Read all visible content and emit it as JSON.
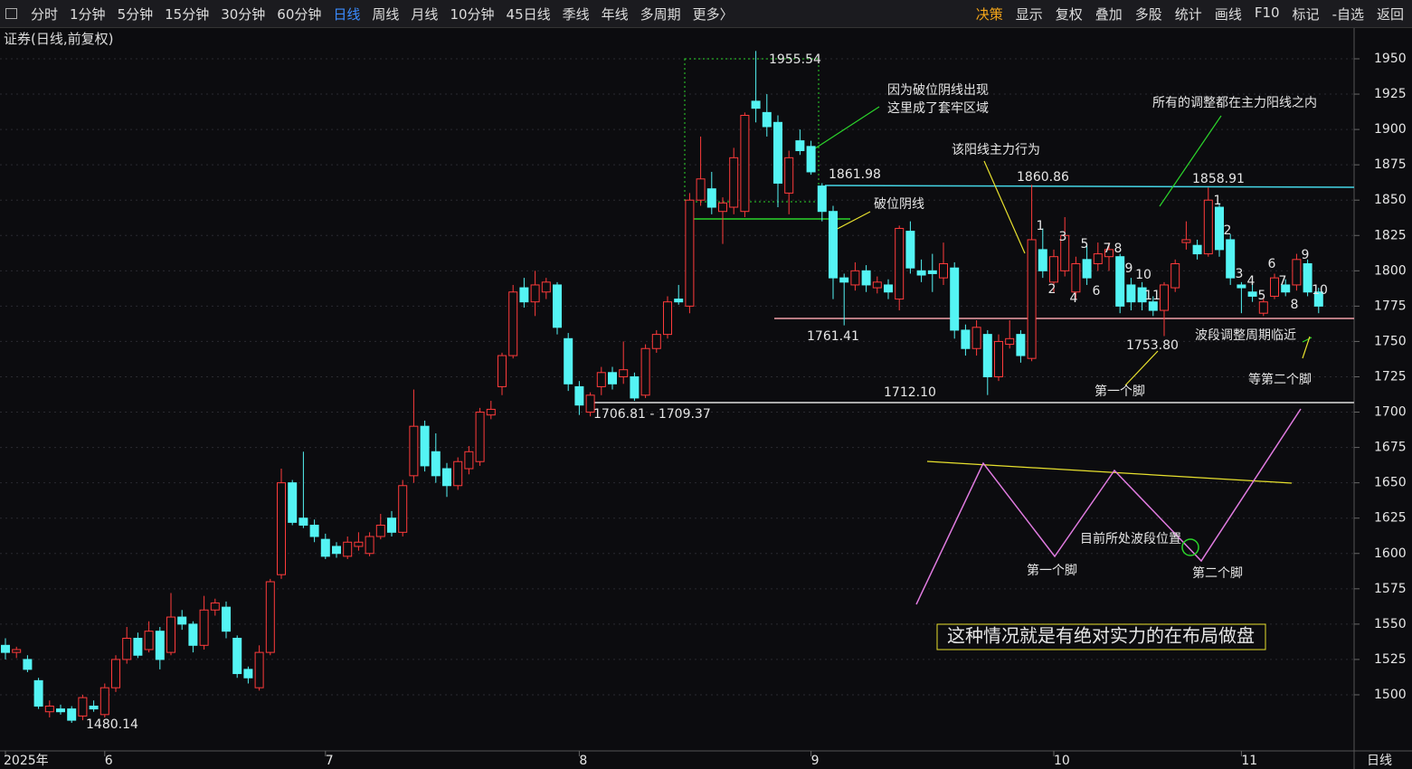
{
  "toolbar": {
    "left": [
      "分时",
      "1分钟",
      "5分钟",
      "15分钟",
      "30分钟",
      "60分钟",
      "日线",
      "周线",
      "月线",
      "10分钟",
      "45日线",
      "季线",
      "年线",
      "多周期",
      "更多〉"
    ],
    "right": [
      "决策",
      "显示",
      "复权",
      "叠加",
      "多股",
      "统计",
      "画线",
      "F10",
      "标记",
      "-自选",
      "返回"
    ]
  },
  "chart_data": {
    "type": "candlestick",
    "title": "证券(日线,前复权)",
    "period_label": "日线",
    "categories": [
      "2025年",
      null,
      null,
      null,
      null,
      null,
      null,
      null,
      null,
      "6",
      null,
      null,
      null,
      null,
      null,
      null,
      null,
      null,
      null,
      null,
      null,
      null,
      null,
      null,
      null,
      null,
      null,
      null,
      null,
      "7",
      null,
      null,
      null,
      null,
      null,
      null,
      null,
      null,
      null,
      null,
      null,
      null,
      null,
      null,
      null,
      null,
      null,
      null,
      null,
      null,
      null,
      null,
      "8",
      null,
      null,
      null,
      null,
      null,
      null,
      null,
      null,
      null,
      null,
      null,
      null,
      null,
      null,
      null,
      null,
      null,
      null,
      null,
      null,
      "9",
      null,
      null,
      null,
      null,
      null,
      null,
      null,
      null,
      null,
      null,
      null,
      null,
      null,
      null,
      null,
      null,
      null,
      null,
      null,
      null,
      null,
      "10",
      null,
      null,
      null,
      null,
      null,
      null,
      null,
      null,
      null,
      null,
      null,
      null,
      null,
      null,
      null,
      null,
      "11",
      null,
      null,
      null,
      null,
      null,
      null,
      null
    ],
    "open": [
      1535,
      1530,
      1525,
      1510,
      1488,
      1490,
      1490,
      1485,
      1492,
      1486,
      1505,
      1525,
      1540,
      1532,
      1545,
      1530,
      1555,
      1550,
      1535,
      1560,
      1562,
      1540,
      1518,
      1505,
      1530,
      1585,
      1650,
      1625,
      1620,
      1610,
      1605,
      1598,
      1605,
      1600,
      1612,
      1625,
      1615,
      1655,
      1690,
      1672,
      1660,
      1648,
      1660,
      1665,
      1698,
      1718,
      1740,
      1788,
      1778,
      1785,
      1790,
      1752,
      1718,
      1700,
      1718,
      1728,
      1725,
      1725,
      1712,
      1745,
      1755,
      1780,
      1775,
      1850,
      1858,
      1842,
      1845,
      1842,
      1920,
      1912,
      1905,
      1855,
      1892,
      1888,
      1860,
      1842,
      1795,
      1790,
      1800,
      1788,
      1790,
      1780,
      1828,
      1800,
      1800,
      1795,
      1802,
      1758,
      1745,
      1755,
      1725,
      1748,
      1755,
      1738,
      1815,
      1792,
      1800,
      1785,
      1808,
      1805,
      1810,
      1810,
      1790,
      1788,
      1778,
      1772,
      1788,
      1820,
      1818,
      1812,
      1845,
      1822,
      1790,
      1785,
      1770,
      1782,
      1790,
      1790,
      1805,
      1785
    ],
    "high": [
      1540,
      1534,
      1528,
      1512,
      1496,
      1493,
      1492,
      1500,
      1496,
      1508,
      1528,
      1548,
      1544,
      1552,
      1548,
      1572,
      1560,
      1552,
      1570,
      1568,
      1566,
      1542,
      1520,
      1535,
      1582,
      1660,
      1652,
      1672,
      1624,
      1614,
      1608,
      1612,
      1615,
      1615,
      1628,
      1630,
      1652,
      1716,
      1694,
      1685,
      1664,
      1668,
      1676,
      1703,
      1708,
      1742,
      1790,
      1795,
      1800,
      1795,
      1792,
      1756,
      1722,
      1714,
      1732,
      1732,
      1750,
      1728,
      1748,
      1758,
      1782,
      1790,
      1855,
      1895,
      1870,
      1852,
      1887,
      1912,
      1955.54,
      1925,
      1910,
      1885,
      1900,
      1892,
      1861.98,
      1846,
      1798,
      1806,
      1804,
      1796,
      1794,
      1832,
      1835,
      1808,
      1812,
      1820,
      1806,
      1762,
      1765,
      1758,
      1755,
      1765,
      1758,
      1860.86,
      1830,
      1815,
      1838,
      1810,
      1818,
      1820,
      1820,
      1812,
      1795,
      1792,
      1782,
      1792,
      1808,
      1835,
      1822,
      1858.91,
      1848,
      1826,
      1792,
      1790,
      1780,
      1798,
      1794,
      1812,
      1808,
      1788
    ],
    "low": [
      1525,
      1526,
      1516,
      1490,
      1484,
      1486,
      1480.14,
      1482,
      1488,
      1484,
      1502,
      1522,
      1526,
      1530,
      1518,
      1528,
      1546,
      1530,
      1532,
      1556,
      1540,
      1512,
      1508,
      1503,
      1528,
      1582,
      1620,
      1618,
      1608,
      1596,
      1597,
      1596,
      1602,
      1598,
      1610,
      1612,
      1612,
      1650,
      1658,
      1650,
      1640,
      1645,
      1656,
      1662,
      1695,
      1712,
      1738,
      1774,
      1768,
      1780,
      1755,
      1715,
      1698,
      1697,
      1712,
      1716,
      1720,
      1708,
      1710,
      1742,
      1752,
      1776,
      1770,
      1846,
      1840,
      1819,
      1840,
      1838,
      1905,
      1895,
      1845,
      1840,
      1882,
      1868,
      1835,
      1780,
      1761.41,
      1786,
      1785,
      1784,
      1780,
      1772,
      1798,
      1792,
      1785,
      1790,
      1752,
      1740,
      1740,
      1712.1,
      1722,
      1745,
      1735,
      1736,
      1795,
      1785,
      1796,
      1780,
      1790,
      1800,
      1800,
      1770,
      1772,
      1772,
      1768,
      1753.8,
      1785,
      1815,
      1808,
      1810,
      1810,
      1790,
      1770,
      1778,
      1768,
      1780,
      1782,
      1786,
      1782,
      1770
    ],
    "close": [
      1530,
      1532,
      1518,
      1492,
      1492,
      1488,
      1482,
      1498,
      1490,
      1505,
      1525,
      1540,
      1528,
      1545,
      1525,
      1555,
      1550,
      1535,
      1560,
      1565,
      1545,
      1515,
      1512,
      1530,
      1580,
      1650,
      1622,
      1620,
      1612,
      1598,
      1600,
      1608,
      1608,
      1612,
      1620,
      1615,
      1648,
      1690,
      1662,
      1655,
      1648,
      1665,
      1672,
      1700,
      1702,
      1740,
      1785,
      1778,
      1790,
      1792,
      1760,
      1720,
      1705,
      1712,
      1728,
      1720,
      1730,
      1710,
      1745,
      1755,
      1778,
      1778,
      1850,
      1865,
      1845,
      1848,
      1880,
      1910,
      1915,
      1902,
      1862,
      1880,
      1885,
      1870,
      1842,
      1795,
      1792,
      1800,
      1790,
      1792,
      1785,
      1830,
      1802,
      1797,
      1798,
      1805,
      1758,
      1745,
      1760,
      1725,
      1750,
      1752,
      1740,
      1822,
      1800,
      1810,
      1825,
      1805,
      1795,
      1812,
      1815,
      1775,
      1778,
      1778,
      1772,
      1790,
      1805,
      1822,
      1812,
      1850,
      1815,
      1795,
      1788,
      1782,
      1778,
      1795,
      1785,
      1808,
      1785,
      1775
    ],
    "up_color": "#ff3b3b",
    "down_color": "#54f4f4",
    "ylim": [
      1460.3,
      1966
    ],
    "yticks": [
      1500,
      1525,
      1550,
      1575,
      1600,
      1625,
      1650,
      1675,
      1700,
      1725,
      1750,
      1775,
      1800,
      1825,
      1850,
      1875,
      1900,
      1925,
      1950
    ],
    "grid": true,
    "price_labels": [
      "1955.54",
      "1861.98",
      "1860.86",
      "1858.91",
      "1761.41",
      "1753.80",
      "1712.10",
      "1706.81 - 1709.37",
      "1480.14"
    ],
    "annotations": [
      "因为破位阴线出现",
      "这里成了套牢区域",
      "所有的调整都在主力阳线之内",
      "该阳线主力行为",
      "破位阴线",
      "波段调整周期临近",
      "等第二个脚",
      "第一个脚",
      "目前所处波段位置",
      "第一个脚",
      "第二个脚",
      "这种情况就是有绝对实力的在布局做盘"
    ],
    "wave_counts": [
      "1",
      "2",
      "3",
      "4",
      "5",
      "6",
      "7",
      "8",
      "9",
      "10",
      "11",
      "1",
      "2",
      "3",
      "4",
      "5",
      "6",
      "7",
      "8",
      "9",
      "10"
    ]
  }
}
